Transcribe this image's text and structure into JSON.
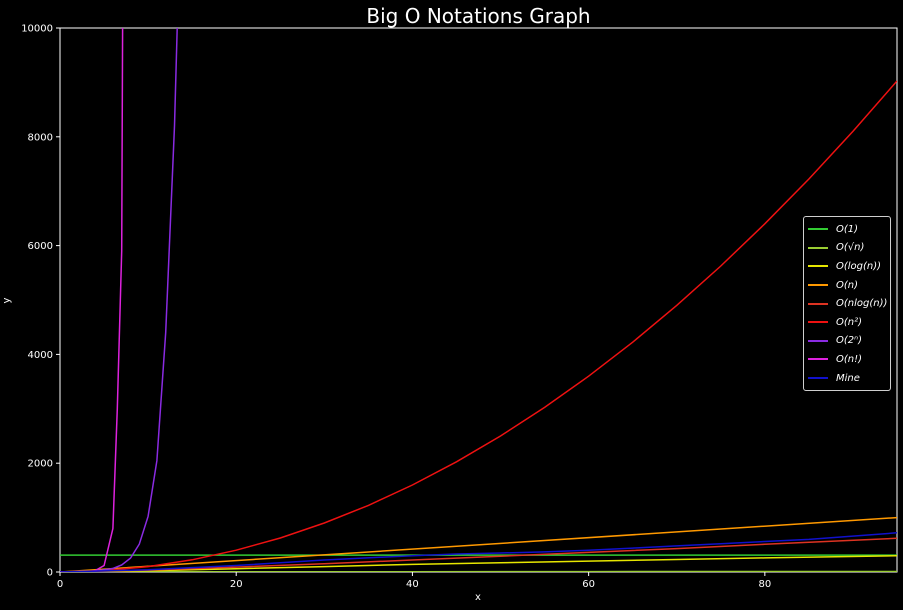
{
  "chart_data": {
    "type": "line",
    "title": "Big O Notations Graph",
    "xlabel": "x",
    "ylabel": "y",
    "xlim": [
      0,
      95
    ],
    "ylim": [
      0,
      10000
    ],
    "xticks": [
      0,
      20,
      40,
      60,
      80
    ],
    "yticks": [
      0,
      2000,
      4000,
      6000,
      8000,
      10000
    ],
    "grid": false,
    "legend_position": "center-right",
    "background": "#000000",
    "series": [
      {
        "name": "O(1)",
        "color": "#33cc33",
        "x": [
          0,
          95
        ],
        "y": [
          310,
          310
        ]
      },
      {
        "name": "O(√n)",
        "color": "#9acd32",
        "x": [
          0,
          10,
          20,
          30,
          40,
          50,
          60,
          70,
          80,
          95
        ],
        "y": [
          0,
          3.2,
          4.5,
          5.5,
          6.3,
          7.1,
          7.7,
          8.4,
          8.9,
          9.7
        ]
      },
      {
        "name": "O(log(n))",
        "color": "#e6e600",
        "x": [
          0,
          10,
          20,
          30,
          40,
          50,
          60,
          70,
          80,
          95
        ],
        "y": [
          0,
          22,
          60,
          100,
          140,
          170,
          200,
          230,
          260,
          300
        ]
      },
      {
        "name": "O(n)",
        "color": "#ff9900",
        "x": [
          0,
          95
        ],
        "y": [
          0,
          1000
        ]
      },
      {
        "name": "O(nlog(n))",
        "color": "#dd3322",
        "x": [
          0,
          10,
          20,
          30,
          40,
          50,
          60,
          70,
          80,
          95
        ],
        "y": [
          0,
          35,
          90,
          150,
          220,
          290,
          360,
          430,
          510,
          620
        ]
      },
      {
        "name": "O(n²)",
        "color": "#ee1111",
        "x": [
          0,
          5,
          10,
          15,
          20,
          25,
          30,
          35,
          40,
          45,
          50,
          55,
          60,
          65,
          70,
          75,
          80,
          85,
          90,
          95
        ],
        "y": [
          0,
          25,
          100,
          225,
          400,
          625,
          900,
          1225,
          1600,
          2025,
          2500,
          3025,
          3600,
          4225,
          4900,
          5625,
          6400,
          7225,
          8100,
          9025
        ]
      },
      {
        "name": "O(2ⁿ)",
        "color": "#8a2be2",
        "x": [
          0,
          4,
          6,
          7,
          8,
          9,
          10,
          11,
          12,
          13,
          13.3
        ],
        "y": [
          0,
          16,
          64,
          128,
          256,
          512,
          1024,
          2048,
          4400,
          8200,
          10000
        ]
      },
      {
        "name": "O(n!)",
        "color": "#dd22dd",
        "x": [
          0,
          3,
          4,
          5,
          6,
          6.5,
          7,
          7.1
        ],
        "y": [
          0,
          6,
          24,
          120,
          800,
          3000,
          5900,
          10000
        ]
      },
      {
        "name": "Mine",
        "color": "#1111cc",
        "x": [
          0,
          10,
          20,
          30,
          40,
          45,
          50,
          55,
          60,
          65,
          70,
          75,
          80,
          85,
          90,
          95
        ],
        "y": [
          0,
          40,
          120,
          220,
          300,
          330,
          350,
          370,
          400,
          440,
          480,
          520,
          560,
          600,
          660,
          720
        ]
      }
    ]
  }
}
